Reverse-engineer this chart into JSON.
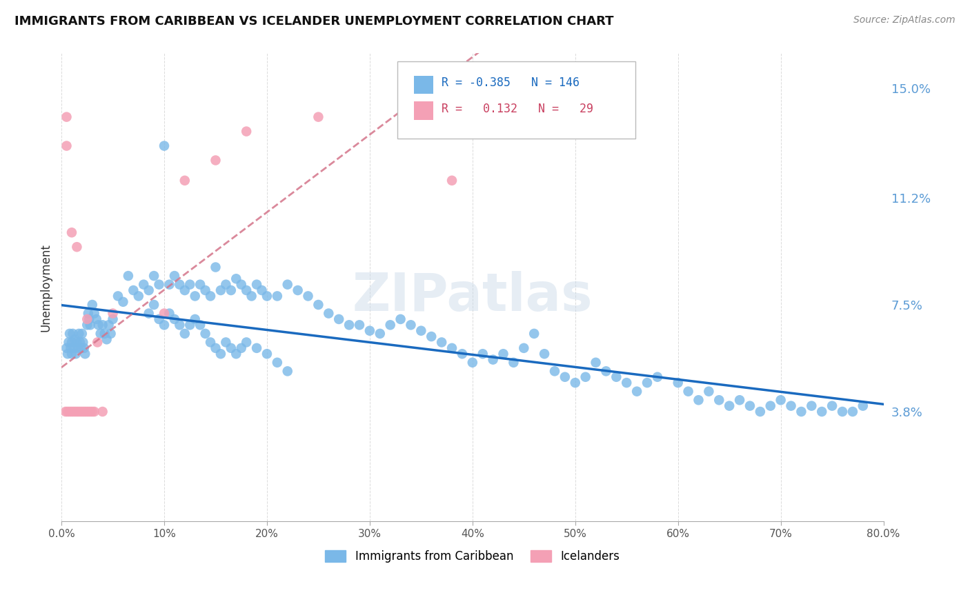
{
  "title": "IMMIGRANTS FROM CARIBBEAN VS ICELANDER UNEMPLOYMENT CORRELATION CHART",
  "source": "Source: ZipAtlas.com",
  "ylabel": "Unemployment",
  "ytick_labels": [
    "3.8%",
    "7.5%",
    "11.2%",
    "15.0%"
  ],
  "ytick_values": [
    0.038,
    0.075,
    0.112,
    0.15
  ],
  "xmin": 0.0,
  "xmax": 0.8,
  "ymin": 0.0,
  "ymax": 0.162,
  "color_blue": "#7ab8e8",
  "color_pink": "#f4a0b5",
  "color_blue_line": "#1a6abf",
  "color_pink_line": "#d4748a",
  "watermark": "ZIPatlas",
  "blue_x": [
    0.005,
    0.006,
    0.007,
    0.008,
    0.009,
    0.01,
    0.01,
    0.011,
    0.012,
    0.013,
    0.014,
    0.015,
    0.016,
    0.017,
    0.018,
    0.019,
    0.02,
    0.021,
    0.022,
    0.023,
    0.025,
    0.026,
    0.027,
    0.028,
    0.03,
    0.032,
    0.034,
    0.036,
    0.038,
    0.04,
    0.042,
    0.044,
    0.046,
    0.048,
    0.05,
    0.055,
    0.06,
    0.065,
    0.07,
    0.075,
    0.08,
    0.085,
    0.09,
    0.095,
    0.1,
    0.105,
    0.11,
    0.115,
    0.12,
    0.125,
    0.13,
    0.135,
    0.14,
    0.145,
    0.15,
    0.155,
    0.16,
    0.165,
    0.17,
    0.175,
    0.18,
    0.185,
    0.19,
    0.195,
    0.2,
    0.21,
    0.22,
    0.23,
    0.24,
    0.25,
    0.26,
    0.27,
    0.28,
    0.29,
    0.3,
    0.31,
    0.32,
    0.33,
    0.34,
    0.35,
    0.36,
    0.37,
    0.38,
    0.39,
    0.4,
    0.41,
    0.42,
    0.43,
    0.44,
    0.45,
    0.46,
    0.47,
    0.48,
    0.49,
    0.5,
    0.51,
    0.52,
    0.53,
    0.54,
    0.55,
    0.56,
    0.57,
    0.58,
    0.6,
    0.61,
    0.62,
    0.63,
    0.64,
    0.65,
    0.66,
    0.67,
    0.68,
    0.69,
    0.7,
    0.71,
    0.72,
    0.73,
    0.74,
    0.75,
    0.76,
    0.77,
    0.78,
    0.085,
    0.09,
    0.095,
    0.1,
    0.105,
    0.11,
    0.115,
    0.12,
    0.125,
    0.13,
    0.135,
    0.14,
    0.145,
    0.15,
    0.155,
    0.16,
    0.165,
    0.17,
    0.175,
    0.18,
    0.19,
    0.2,
    0.21,
    0.22
  ],
  "blue_y": [
    0.06,
    0.058,
    0.062,
    0.065,
    0.06,
    0.058,
    0.062,
    0.065,
    0.06,
    0.063,
    0.058,
    0.062,
    0.06,
    0.065,
    0.062,
    0.06,
    0.065,
    0.062,
    0.06,
    0.058,
    0.068,
    0.072,
    0.07,
    0.068,
    0.075,
    0.072,
    0.07,
    0.068,
    0.065,
    0.068,
    0.065,
    0.063,
    0.068,
    0.065,
    0.07,
    0.078,
    0.076,
    0.085,
    0.08,
    0.078,
    0.082,
    0.08,
    0.085,
    0.082,
    0.13,
    0.082,
    0.085,
    0.082,
    0.08,
    0.082,
    0.078,
    0.082,
    0.08,
    0.078,
    0.088,
    0.08,
    0.082,
    0.08,
    0.084,
    0.082,
    0.08,
    0.078,
    0.082,
    0.08,
    0.078,
    0.078,
    0.082,
    0.08,
    0.078,
    0.075,
    0.072,
    0.07,
    0.068,
    0.068,
    0.066,
    0.065,
    0.068,
    0.07,
    0.068,
    0.066,
    0.064,
    0.062,
    0.06,
    0.058,
    0.055,
    0.058,
    0.056,
    0.058,
    0.055,
    0.06,
    0.065,
    0.058,
    0.052,
    0.05,
    0.048,
    0.05,
    0.055,
    0.052,
    0.05,
    0.048,
    0.045,
    0.048,
    0.05,
    0.048,
    0.045,
    0.042,
    0.045,
    0.042,
    0.04,
    0.042,
    0.04,
    0.038,
    0.04,
    0.042,
    0.04,
    0.038,
    0.04,
    0.038,
    0.04,
    0.038,
    0.038,
    0.04,
    0.072,
    0.075,
    0.07,
    0.068,
    0.072,
    0.07,
    0.068,
    0.065,
    0.068,
    0.07,
    0.068,
    0.065,
    0.062,
    0.06,
    0.058,
    0.062,
    0.06,
    0.058,
    0.06,
    0.062,
    0.06,
    0.058,
    0.055,
    0.052
  ],
  "pink_x": [
    0.004,
    0.005,
    0.005,
    0.006,
    0.008,
    0.01,
    0.01,
    0.012,
    0.014,
    0.015,
    0.016,
    0.018,
    0.02,
    0.022,
    0.024,
    0.025,
    0.026,
    0.028,
    0.03,
    0.032,
    0.035,
    0.04,
    0.05,
    0.1,
    0.12,
    0.15,
    0.18,
    0.25,
    0.38
  ],
  "pink_y": [
    0.038,
    0.14,
    0.13,
    0.038,
    0.038,
    0.1,
    0.038,
    0.038,
    0.038,
    0.095,
    0.038,
    0.038,
    0.038,
    0.038,
    0.038,
    0.07,
    0.038,
    0.038,
    0.038,
    0.038,
    0.062,
    0.038,
    0.072,
    0.072,
    0.118,
    0.125,
    0.135,
    0.14,
    0.118
  ]
}
